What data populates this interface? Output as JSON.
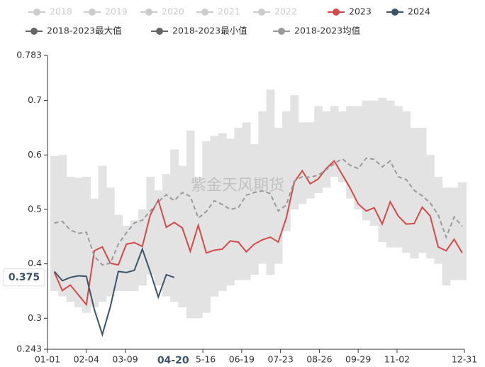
{
  "chart_data": {
    "type": "line",
    "watermark": "紫金天风期货",
    "x": [
      6,
      13,
      20,
      27,
      34,
      41,
      48,
      55,
      62,
      69,
      76,
      83,
      90,
      97,
      104,
      111,
      118,
      125,
      132,
      139,
      146,
      153,
      160,
      167,
      174,
      181,
      188,
      195,
      202,
      209,
      216,
      223,
      230,
      237,
      244,
      251,
      258,
      265,
      272,
      279,
      286,
      293,
      300,
      307,
      314,
      321,
      328,
      335,
      342,
      349,
      356,
      363
    ],
    "xlim": [
      0,
      365
    ],
    "xticks": [
      {
        "value": 0,
        "label": "01-01"
      },
      {
        "value": 34,
        "label": "02-04"
      },
      {
        "value": 68,
        "label": "03-09"
      },
      {
        "value": 136,
        "label": "05-16"
      },
      {
        "value": 170,
        "label": "06-19"
      },
      {
        "value": 204,
        "label": "07-23"
      },
      {
        "value": 238,
        "label": "08-26"
      },
      {
        "value": 272,
        "label": "09-29"
      },
      {
        "value": 306,
        "label": "11-02"
      },
      {
        "value": 365,
        "label": "12-31"
      }
    ],
    "ylim": [
      0.243,
      0.783
    ],
    "yticks": [
      0.243,
      0.3,
      0.4,
      0.5,
      0.6,
      0.7,
      0.783
    ],
    "axis_pointer": {
      "x": {
        "value": 110,
        "label": "04-20"
      },
      "y": 0.375
    },
    "band_color": "#e3e3e3",
    "series": [
      {
        "name": "2018",
        "color": "#cccccc",
        "selected": false
      },
      {
        "name": "2019",
        "color": "#cccccc",
        "selected": false
      },
      {
        "name": "2020",
        "color": "#cccccc",
        "selected": false
      },
      {
        "name": "2021",
        "color": "#cccccc",
        "selected": false
      },
      {
        "name": "2022",
        "color": "#cccccc",
        "selected": false
      },
      {
        "name": "2023",
        "color": "#d24a4a",
        "selected": true,
        "style": "line",
        "values": [
          0.384,
          0.351,
          0.361,
          0.343,
          0.325,
          0.424,
          0.431,
          0.401,
          0.398,
          0.436,
          0.439,
          0.432,
          0.49,
          0.517,
          0.467,
          0.476,
          0.466,
          0.423,
          0.471,
          0.42,
          0.425,
          0.427,
          0.442,
          0.44,
          0.422,
          0.436,
          0.444,
          0.449,
          0.44,
          0.484,
          0.55,
          0.571,
          0.547,
          0.556,
          0.575,
          0.589,
          0.564,
          0.539,
          0.51,
          0.497,
          0.503,
          0.473,
          0.514,
          0.488,
          0.473,
          0.474,
          0.504,
          0.488,
          0.431,
          0.424,
          0.445,
          0.42
        ]
      },
      {
        "name": "2024",
        "color": "#3d5468",
        "selected": true,
        "style": "line",
        "values": [
          0.386,
          0.369,
          0.375,
          0.378,
          0.377,
          0.316,
          0.27,
          0.321,
          0.386,
          0.384,
          0.388,
          0.427,
          0.385,
          0.339,
          0.38,
          0.375,
          null,
          null,
          null,
          null,
          null,
          null,
          null,
          null,
          null,
          null,
          null,
          null,
          null,
          null,
          null,
          null,
          null,
          null,
          null,
          null,
          null,
          null,
          null,
          null,
          null,
          null,
          null,
          null,
          null,
          null,
          null,
          null,
          null,
          null,
          null,
          null
        ]
      },
      {
        "name": "2018-2023最大值",
        "color": "#666666",
        "selected": true,
        "style": "band-top",
        "values": [
          0.598,
          0.6,
          0.56,
          0.558,
          0.56,
          0.52,
          0.58,
          0.54,
          0.49,
          0.47,
          0.48,
          0.5,
          0.56,
          0.535,
          0.565,
          0.61,
          0.58,
          0.645,
          0.56,
          0.625,
          0.635,
          0.64,
          0.63,
          0.65,
          0.66,
          0.62,
          0.68,
          0.72,
          0.65,
          0.68,
          0.71,
          0.66,
          0.66,
          0.69,
          0.68,
          0.69,
          0.68,
          0.69,
          0.69,
          0.7,
          0.7,
          0.705,
          0.7,
          0.69,
          0.68,
          0.65,
          0.65,
          0.6,
          0.56,
          0.54,
          0.54,
          0.55
        ]
      },
      {
        "name": "2018-2023最小值",
        "color": "#666666",
        "selected": true,
        "style": "band-bottom",
        "values": [
          0.35,
          0.34,
          0.33,
          0.32,
          0.31,
          0.32,
          0.33,
          0.34,
          0.35,
          0.35,
          0.35,
          0.36,
          0.38,
          0.36,
          0.34,
          0.33,
          0.32,
          0.3,
          0.3,
          0.31,
          0.34,
          0.35,
          0.36,
          0.37,
          0.37,
          0.38,
          0.4,
          0.38,
          0.4,
          0.46,
          0.5,
          0.51,
          0.52,
          0.53,
          0.54,
          0.56,
          0.55,
          0.52,
          0.5,
          0.48,
          0.47,
          0.44,
          0.43,
          0.43,
          0.42,
          0.41,
          0.42,
          0.41,
          0.4,
          0.36,
          0.37,
          0.37
        ]
      },
      {
        "name": "2018-2023均值",
        "color": "#9a9a9a",
        "selected": true,
        "style": "dashed",
        "values": [
          0.475,
          0.478,
          0.462,
          0.456,
          0.458,
          0.414,
          0.398,
          0.401,
          0.436,
          0.457,
          0.475,
          0.48,
          0.497,
          0.514,
          0.527,
          0.516,
          0.531,
          0.524,
          0.484,
          0.496,
          0.516,
          0.509,
          0.5,
          0.503,
          0.526,
          0.531,
          0.534,
          0.529,
          0.497,
          0.508,
          0.552,
          0.56,
          0.559,
          0.563,
          0.573,
          0.584,
          0.593,
          0.581,
          0.575,
          0.594,
          0.592,
          0.578,
          0.589,
          0.56,
          0.555,
          0.535,
          0.525,
          0.512,
          0.49,
          0.449,
          0.486,
          0.469
        ]
      }
    ]
  }
}
